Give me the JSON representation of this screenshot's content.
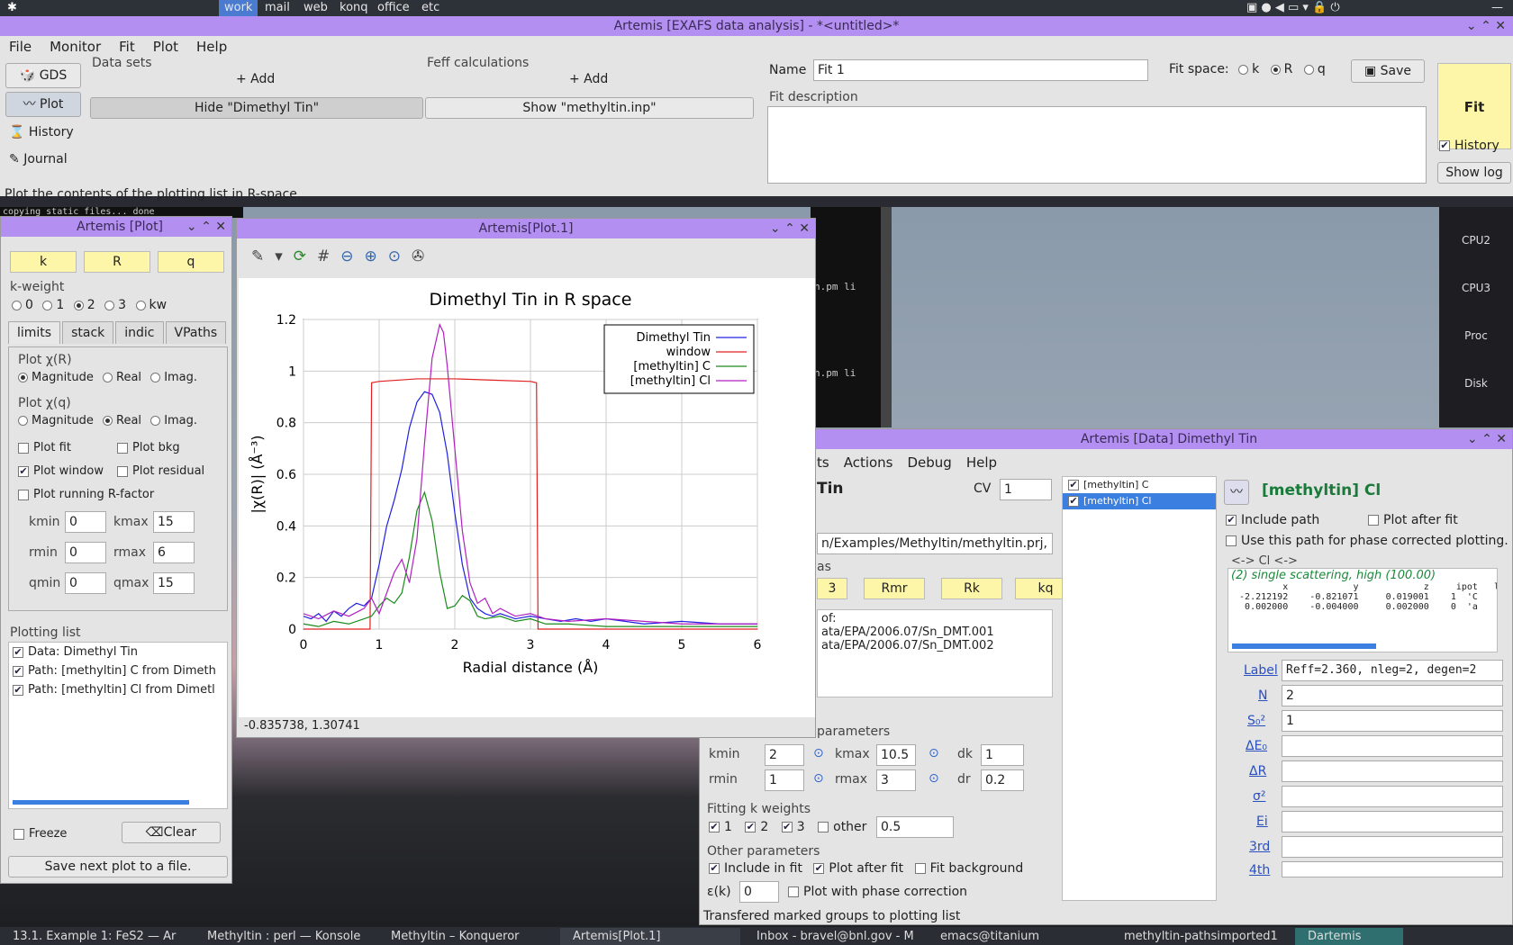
{
  "topbar": {
    "workspaces": [
      "work",
      "mail",
      "web",
      "konq",
      "office",
      "etc"
    ]
  },
  "main": {
    "title": "Artemis [EXAFS data analysis] - *<untitled>*",
    "menu": [
      "File",
      "Monitor",
      "Fit",
      "Plot",
      "Help"
    ],
    "side_buttons": [
      "GDS",
      "Plot",
      "History",
      "Journal"
    ],
    "datasets_label": "Data sets",
    "feff_label": "Feff calculations",
    "add_label": "+ Add",
    "hide_btn": "Hide \"Dimethyl Tin\"",
    "show_btn": "Show \"methyltin.inp\"",
    "name_label": "Name",
    "name_value": "Fit 1",
    "fitspace_label": "Fit space:",
    "fitspace_opts": [
      "k",
      "R",
      "q"
    ],
    "save_label": "Save",
    "desc_label": "Fit description",
    "fit_label": "Fit",
    "history_label": "History",
    "showlog_label": "Show log",
    "status": "Plot the contents of the plotting list in R-space.",
    "console": "copying static files... done"
  },
  "plotctl": {
    "title": "Artemis [Plot]",
    "kbtn": "k",
    "rbtn": "R",
    "qbtn": "q",
    "kweight_label": "k-weight",
    "kweights": [
      "0",
      "1",
      "2",
      "3",
      "kw"
    ],
    "tabs": [
      "limits",
      "stack",
      "indic",
      "VPaths"
    ],
    "chir_label": "Plot χ(R)",
    "chiq_label": "Plot χ(q)",
    "opts3": [
      "Magnitude",
      "Real",
      "Imag."
    ],
    "plotfit": "Plot fit",
    "plotbkg": "Plot bkg",
    "plotwindow": "Plot window",
    "plotresidual": "Plot residual",
    "plotrunning": "Plot running R-factor",
    "kmin_label": "kmin",
    "kmin": "0",
    "kmax_label": "kmax",
    "kmax": "15",
    "rmin_label": "rmin",
    "rmin": "0",
    "rmax_label": "rmax",
    "rmax": "6",
    "qmin_label": "qmin",
    "qmin": "0",
    "qmax_label": "qmax",
    "qmax": "15",
    "plotlist_label": "Plotting list",
    "items": [
      "Data: Dimethyl Tin",
      "Path: [methyltin] C  from Dimeth",
      "Path: [methyltin] Cl  from Dimetl"
    ],
    "freeze_label": "Freeze",
    "clear_label": "Clear",
    "savenext_label": "Save next plot to a file."
  },
  "plotwin": {
    "title": "Artemis[Plot.1]",
    "coords": "-0.835738, 1.30741"
  },
  "chart_data": {
    "type": "line",
    "title": "Dimethyl Tin in R space",
    "xlabel": "Radial distance   (Å)",
    "ylabel": "|χ(R)|   (Å⁻³)",
    "xlim": [
      0,
      6
    ],
    "ylim": [
      0,
      1.2
    ],
    "xticks": [
      "0",
      "1",
      "2",
      "3",
      "4",
      "5",
      "6"
    ],
    "yticks": [
      "0",
      "0.2",
      "0.4",
      "0.6",
      "0.8",
      "1",
      "1.2"
    ],
    "legend": "top-right",
    "grid": true,
    "series": [
      {
        "name": "Dimethyl Tin",
        "color": "#2020e0",
        "x": [
          0,
          0.1,
          0.2,
          0.3,
          0.4,
          0.5,
          0.6,
          0.7,
          0.8,
          0.9,
          1.0,
          1.1,
          1.2,
          1.3,
          1.4,
          1.5,
          1.6,
          1.7,
          1.8,
          1.9,
          2.0,
          2.1,
          2.2,
          2.3,
          2.4,
          2.5,
          2.6,
          2.8,
          3.0,
          3.2,
          3.4,
          3.6,
          3.8,
          4.0,
          4.5,
          5.0,
          5.5,
          6.0
        ],
        "y": [
          0.05,
          0.04,
          0.06,
          0.03,
          0.07,
          0.05,
          0.08,
          0.1,
          0.09,
          0.12,
          0.25,
          0.4,
          0.5,
          0.62,
          0.78,
          0.88,
          0.92,
          0.91,
          0.84,
          0.68,
          0.45,
          0.25,
          0.12,
          0.08,
          0.06,
          0.05,
          0.06,
          0.04,
          0.05,
          0.04,
          0.03,
          0.04,
          0.03,
          0.04,
          0.02,
          0.03,
          0.02,
          0.02
        ]
      },
      {
        "name": "window",
        "color": "#e02020",
        "x": [
          0,
          0.88,
          0.9,
          1.0,
          1.5,
          2.0,
          2.5,
          3.0,
          3.08,
          3.1,
          6.0
        ],
        "y": [
          0,
          0,
          0.955,
          0.96,
          0.97,
          0.97,
          0.965,
          0.96,
          0.955,
          0,
          0
        ]
      },
      {
        "name": "[methyltin] C",
        "color": "#1a8a1a",
        "x": [
          0,
          0.2,
          0.4,
          0.6,
          0.8,
          0.9,
          1.0,
          1.1,
          1.2,
          1.3,
          1.4,
          1.5,
          1.6,
          1.7,
          1.8,
          1.9,
          2.0,
          2.1,
          2.2,
          2.3,
          2.4,
          2.6,
          2.8,
          3.0,
          3.2,
          3.5,
          4.0,
          5.0,
          6.0
        ],
        "y": [
          0.02,
          0.01,
          0.03,
          0.02,
          0.04,
          0.05,
          0.09,
          0.12,
          0.1,
          0.14,
          0.28,
          0.46,
          0.53,
          0.42,
          0.22,
          0.08,
          0.09,
          0.13,
          0.11,
          0.05,
          0.04,
          0.05,
          0.03,
          0.04,
          0.02,
          0.02,
          0.01,
          0.01,
          0.01
        ]
      },
      {
        "name": "[methyltin] Cl",
        "color": "#b020c0",
        "x": [
          0,
          0.2,
          0.4,
          0.6,
          0.8,
          0.9,
          1.0,
          1.1,
          1.2,
          1.3,
          1.4,
          1.5,
          1.6,
          1.7,
          1.8,
          1.85,
          1.9,
          2.0,
          2.1,
          2.2,
          2.3,
          2.4,
          2.5,
          2.6,
          2.8,
          3.0,
          3.2,
          3.5,
          4.0,
          5.0,
          6.0
        ],
        "y": [
          0.06,
          0.04,
          0.07,
          0.05,
          0.08,
          0.12,
          0.06,
          0.14,
          0.22,
          0.27,
          0.18,
          0.35,
          0.72,
          1.05,
          1.18,
          1.15,
          1.02,
          0.7,
          0.38,
          0.18,
          0.1,
          0.12,
          0.06,
          0.08,
          0.05,
          0.06,
          0.04,
          0.03,
          0.04,
          0.02,
          0.02
        ]
      }
    ]
  },
  "datawin": {
    "title": "Artemis [Data] Dimethyl Tin",
    "menu": [
      "ts",
      "Actions",
      "Debug",
      "Help"
    ],
    "name_frag": "Tin",
    "cv_label": "CV",
    "cv": "1",
    "file": "n/Examples/Methyltin/methyltin.prj, 2",
    "as_label": "as",
    "plotbtns": [
      "3",
      "Rmr",
      "Rk",
      "kq"
    ],
    "sum_of": "of:",
    "files": [
      "ata/EPA/2006.07/Sn_DMT.001",
      "ata/EPA/2006.07/Sn_DMT.002"
    ],
    "params_label": "parameters",
    "kmin_label": "kmin",
    "kmin": "2",
    "kmax_label": "kmax",
    "kmax": "10.5",
    "dk_label": "dk",
    "dk": "1",
    "rmin_label": "rmin",
    "rmin": "1",
    "rmax_label": "rmax",
    "rmax": "3",
    "dr_label": "dr",
    "dr": "0.2",
    "kw_label": "Fitting k weights",
    "kw": [
      "1",
      "2",
      "3"
    ],
    "other_label": "other",
    "other": "0.5",
    "other_params": "Other parameters",
    "include": "Include in fit",
    "plotafter": "Plot after fit",
    "fitbkg": "Fit background",
    "ek_label": "ε(k)",
    "ek": "0",
    "phasecorr": "Plot with phase correction",
    "status": "Transfered marked groups to plotting list",
    "paths": [
      "[methyltin] C",
      "[methyltin] Cl"
    ],
    "path_title": "[methyltin] Cl",
    "include_path": "Include path",
    "plot_after": "Plot after fit",
    "phase_path": "Use this path for phase corrected plotting.",
    "geom_hdr": "<-> Cl    <->",
    "geom_desc": "(2) single scattering, high (100.00)",
    "geom_cols": "          x            y            z     ipot   l",
    "geom_r1": "  -2.212192    -0.821071     0.019001    1  'C",
    "geom_r2": "   0.002000    -0.004000     0.002000    0  'a",
    "fields": [
      {
        "k": "Label",
        "v": "Reff=2.360, nleg=2, degen=2"
      },
      {
        "k": "N",
        "v": "2"
      },
      {
        "k": "S₀²",
        "v": "1"
      },
      {
        "k": "ΔE₀",
        "v": ""
      },
      {
        "k": "ΔR",
        "v": ""
      },
      {
        "k": "σ²",
        "v": ""
      },
      {
        "k": "Ei",
        "v": ""
      },
      {
        "k": "3rd",
        "v": ""
      },
      {
        "k": "4th",
        "v": ""
      }
    ]
  },
  "term": {
    "l1": "h.pm li",
    "l2": "h.pm li"
  },
  "monitors": [
    "CPU2",
    "CPU3",
    "Proc",
    "Disk"
  ],
  "taskbar": [
    "13.1. Example 1: FeS2 — Ar",
    "Methyltin : perl — Konsole",
    "Methyltin – Konqueror",
    "Artemis[Plot.1]",
    "Inbox - bravel@bnl.gov - M",
    "emacs@titanium",
    "methyltin-pathsimported1",
    "Dartemis"
  ]
}
